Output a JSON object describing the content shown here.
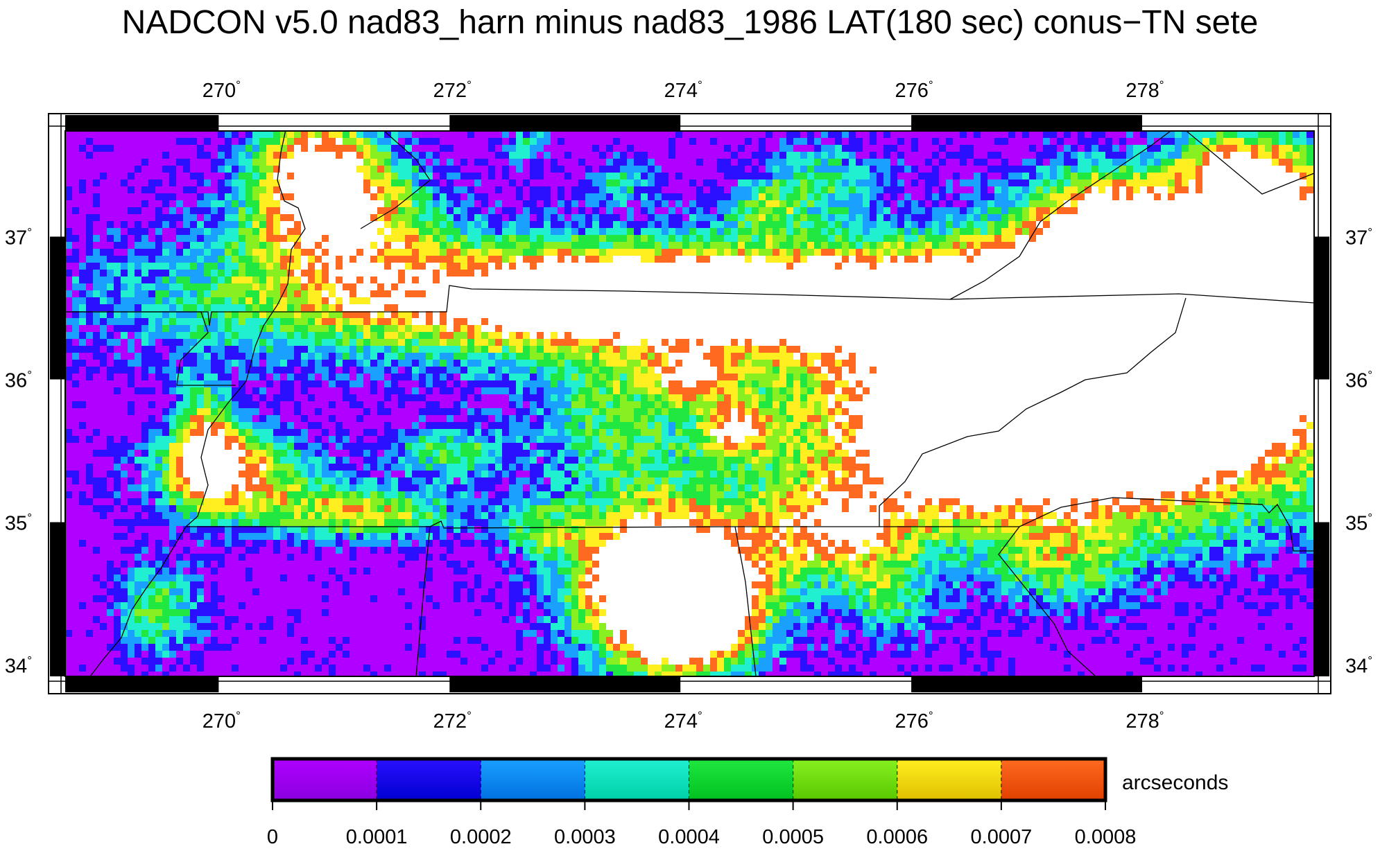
{
  "title": "NADCON v5.0 nad83_harn minus nad83_1986 LAT(180 sec) conus−TN sete",
  "map": {
    "lon_range": [
      268.67,
      279.49
    ],
    "lat_range": [
      33.92,
      37.74
    ],
    "lon_ticks": [
      {
        "value": 270,
        "label": "270"
      },
      {
        "value": 272,
        "label": "272"
      },
      {
        "value": 274,
        "label": "274"
      },
      {
        "value": 276,
        "label": "276"
      },
      {
        "value": 278,
        "label": "278"
      }
    ],
    "lat_ticks": [
      {
        "value": 34,
        "label": "34"
      },
      {
        "value": 35,
        "label": "35"
      },
      {
        "value": 36,
        "label": "36"
      },
      {
        "value": 37,
        "label": "37"
      }
    ],
    "degree_symbol": "°",
    "frame_minor_lon": 2,
    "frame_minor_lat": 1
  },
  "colorbar": {
    "units": "arcseconds",
    "range": [
      0,
      0.0008
    ],
    "tick_labels": [
      "0",
      "0.0001",
      "0.0002",
      "0.0003",
      "0.0004",
      "0.0005",
      "0.0006",
      "0.0007",
      "0.0008"
    ],
    "colors": [
      [
        "#b000ff",
        "#8a00e0"
      ],
      [
        "#2a10ff",
        "#0000d0"
      ],
      [
        "#1aa0ff",
        "#0070e0"
      ],
      [
        "#20f0d0",
        "#00d0a8"
      ],
      [
        "#20e840",
        "#00c020"
      ],
      [
        "#88f020",
        "#58c800"
      ],
      [
        "#ffee20",
        "#e0c000"
      ],
      [
        "#ff6a20",
        "#e04000"
      ]
    ],
    "above_max_color": "#ffffff"
  }
}
